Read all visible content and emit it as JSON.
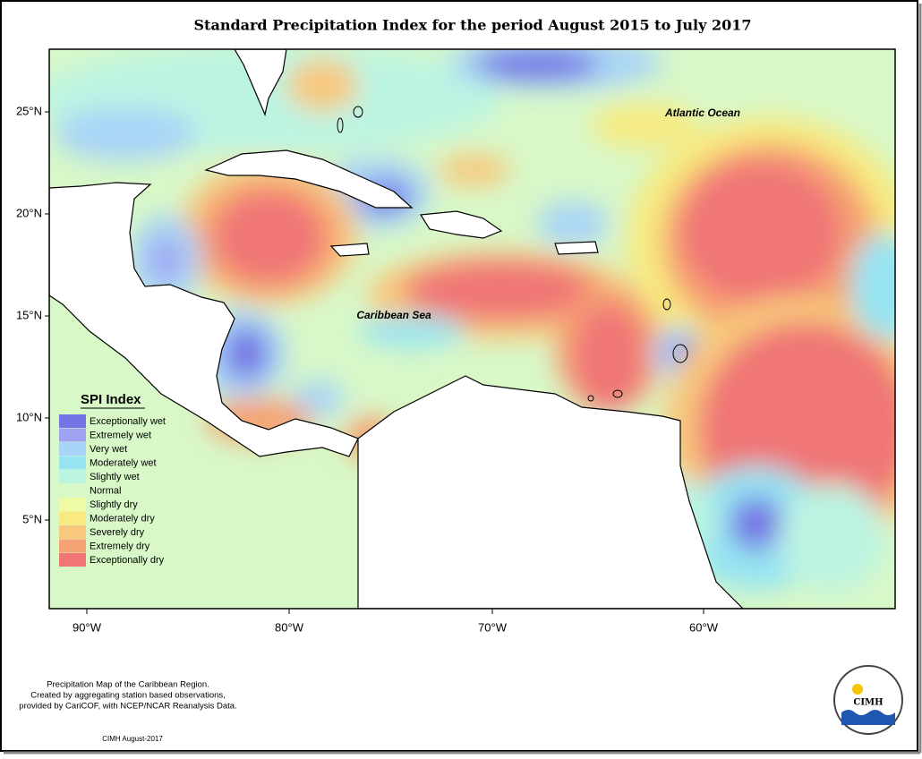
{
  "title": "Standard Precipitation Index for the period August 2015 to July 2017",
  "map": {
    "lat_ticks": [
      "25°N",
      "20°N",
      "15°N",
      "10°N",
      "5°N"
    ],
    "lon_ticks": [
      "90°W",
      "80°W",
      "70°W",
      "60°W"
    ],
    "places": [
      "Atlantic Ocean",
      "Caribbean Sea"
    ]
  },
  "legend": {
    "title": "SPI Index",
    "items": [
      {
        "label": "Exceptionally wet",
        "color": "#7474e4"
      },
      {
        "label": "Extremely wet",
        "color": "#a0a2f2"
      },
      {
        "label": "Very wet",
        "color": "#a8d4f8"
      },
      {
        "label": "Moderately wet",
        "color": "#96e4f2"
      },
      {
        "label": "Slightly wet",
        "color": "#bcf4e2"
      },
      {
        "label": "Normal",
        "color": "#d8f8c8"
      },
      {
        "label": "Slightly dry",
        "color": "#eefaa4"
      },
      {
        "label": "Moderately dry",
        "color": "#f8ea80"
      },
      {
        "label": "Severely dry",
        "color": "#f8c87c"
      },
      {
        "label": "Extremely dry",
        "color": "#f6a272"
      },
      {
        "label": "Exceptionally dry",
        "color": "#f07676"
      }
    ]
  },
  "footer": {
    "notes": [
      "Precipitation Map of the Caribbean Region.",
      "Created by aggregating station based observations,",
      "provided by CariCOF, with NCEP/NCAR Reanalysis Data."
    ],
    "credit": "CIMH August-2017"
  },
  "logo": {
    "name": "CIMH"
  }
}
